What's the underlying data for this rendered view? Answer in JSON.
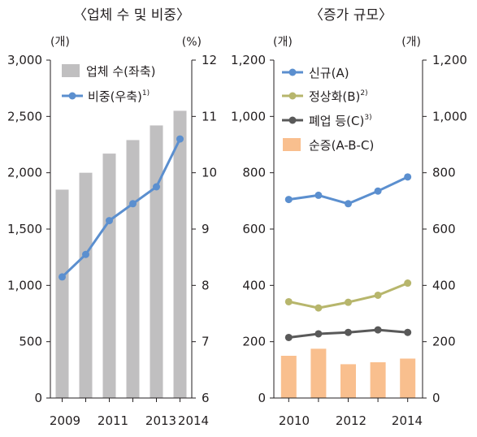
{
  "chart_data": [
    {
      "type": "bar",
      "title": "〈업체 수 및 비중〉",
      "left_unit": "(개)",
      "right_unit": "(%)",
      "x_tick_labels": [
        "2009",
        "2011",
        "2013",
        "2014"
      ],
      "y_left_ticks": [
        "0",
        "500",
        "1,000",
        "1,500",
        "2,000",
        "2,500",
        "3,000"
      ],
      "y_right_ticks": [
        "6",
        "7",
        "8",
        "9",
        "10",
        "11",
        "12"
      ],
      "ylim_left": [
        0,
        3000
      ],
      "ylim_right": [
        6,
        12
      ],
      "x": [
        2009,
        2010,
        2011,
        2012,
        2013,
        2014
      ],
      "grid": false,
      "legend_position": "top-left",
      "series": [
        {
          "name": "업체 수(좌축)",
          "type": "bar",
          "axis": "left",
          "color": "#c0bfc0",
          "values": [
            1850,
            2000,
            2170,
            2290,
            2420,
            2550
          ]
        },
        {
          "name": "비중(우축)",
          "note_mark": "1)",
          "type": "line",
          "axis": "right",
          "color": "#5b8fcf",
          "values": [
            8.15,
            8.55,
            9.15,
            9.45,
            9.75,
            10.6
          ]
        }
      ]
    },
    {
      "type": "bar",
      "title": "〈증가 규모〉",
      "left_unit": "(개)",
      "right_unit": "(개)",
      "x_tick_labels": [
        "2010",
        "2012",
        "2014"
      ],
      "y_left_ticks": [
        "0",
        "200",
        "400",
        "600",
        "800",
        "1,000",
        "1,200"
      ],
      "y_right_ticks": [
        "0",
        "200",
        "400",
        "600",
        "800",
        "1,000",
        "1,200"
      ],
      "ylim": [
        0,
        1200
      ],
      "x": [
        2010,
        2011,
        2012,
        2013,
        2014
      ],
      "grid": false,
      "legend_position": "top-left",
      "series": [
        {
          "name": "신규(A)",
          "type": "line",
          "color": "#5b8fcf",
          "values": [
            705,
            720,
            690,
            735,
            785
          ]
        },
        {
          "name": "정상화(B)",
          "note_mark": "2)",
          "type": "line",
          "color": "#b7b66c",
          "values": [
            342,
            320,
            340,
            365,
            408
          ]
        },
        {
          "name": "폐업 등(C)",
          "note_mark": "3)",
          "type": "line",
          "color": "#595959",
          "values": [
            215,
            228,
            233,
            242,
            233
          ]
        },
        {
          "name": "순증(A-B-C)",
          "type": "bar",
          "color": "#f9bf8e",
          "values": [
            150,
            175,
            120,
            127,
            140
          ]
        }
      ]
    }
  ]
}
